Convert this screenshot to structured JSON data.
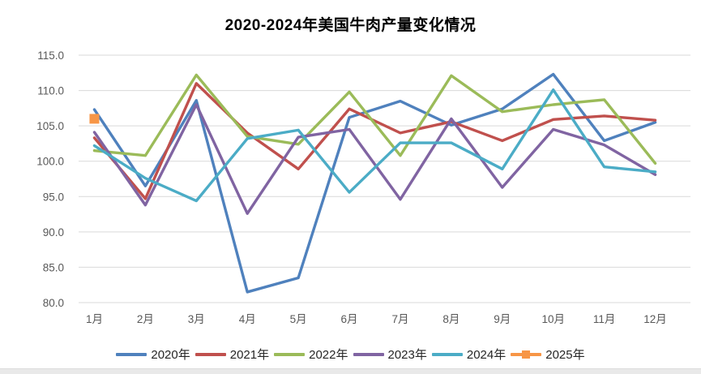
{
  "page": {
    "background": "#ffffff"
  },
  "chart_data": {
    "type": "line",
    "title": "2020-2024年美国牛肉产量变化情况",
    "categories": [
      "1月",
      "2月",
      "3月",
      "4月",
      "5月",
      "6月",
      "7月",
      "8月",
      "9月",
      "10月",
      "11月",
      "12月"
    ],
    "series": [
      {
        "name": "2020年",
        "color": "#4F81BD",
        "marker": "none",
        "values": [
          107.3,
          96.5,
          108.6,
          81.5,
          83.5,
          106.2,
          108.5,
          105.1,
          107.4,
          112.3,
          102.9,
          105.5
        ]
      },
      {
        "name": "2021年",
        "color": "#C0504D",
        "marker": "none",
        "values": [
          103.3,
          94.7,
          111.0,
          104.0,
          98.9,
          107.4,
          104.0,
          105.6,
          102.9,
          105.9,
          106.4,
          105.8
        ]
      },
      {
        "name": "2022年",
        "color": "#9BBB59",
        "marker": "none",
        "values": [
          101.5,
          100.8,
          112.2,
          103.5,
          102.4,
          109.8,
          100.8,
          112.1,
          107.0,
          108.0,
          108.7,
          99.7
        ]
      },
      {
        "name": "2023年",
        "color": "#8064A2",
        "marker": "none",
        "values": [
          104.1,
          93.8,
          108.0,
          92.6,
          103.4,
          104.5,
          94.6,
          106.0,
          96.3,
          104.5,
          102.3,
          98.1
        ]
      },
      {
        "name": "2024年",
        "color": "#4BACC6",
        "marker": "none",
        "values": [
          102.2,
          97.6,
          94.4,
          103.2,
          104.4,
          95.6,
          102.6,
          102.6,
          98.9,
          110.1,
          99.2,
          98.5
        ]
      },
      {
        "name": "2025年",
        "color": "#F79646",
        "marker": "square",
        "values": [
          106.0,
          null,
          null,
          null,
          null,
          null,
          null,
          null,
          null,
          null,
          null,
          null
        ]
      }
    ],
    "ylim": [
      80.0,
      115.0
    ],
    "ytick_step": 5.0,
    "yticks": [
      "115.0",
      "110.0",
      "105.0",
      "100.0",
      "95.0",
      "90.0",
      "85.0",
      "80.0"
    ],
    "grid": true,
    "gridline_color": "#d9d9d9",
    "axis_label_color": "#595959",
    "legend_position": "bottom"
  }
}
